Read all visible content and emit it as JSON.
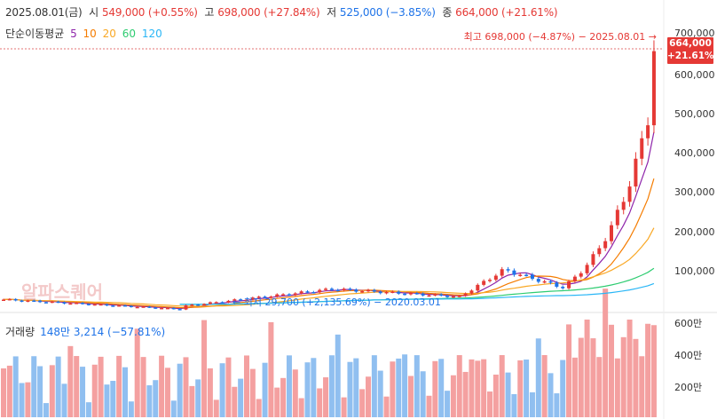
{
  "ohlc": {
    "date": "2025.08.01(금)",
    "open_label": "시",
    "open": "549,000 (+0.55%)",
    "high_label": "고",
    "high": "698,000 (+27.84%)",
    "low_label": "저",
    "low": "525,000 (−3.85%)",
    "close_label": "종",
    "close": "664,000 (+21.61%)"
  },
  "moving_average": {
    "label": "단순이동평균",
    "periods": [
      {
        "value": "5",
        "color": "#8e24aa"
      },
      {
        "value": "10",
        "color": "#f57c00"
      },
      {
        "value": "20",
        "color": "#f9a825"
      },
      {
        "value": "60",
        "color": "#2ecc71"
      },
      {
        "value": "120",
        "color": "#29b6f6"
      }
    ]
  },
  "price_axis": [
    "700,000",
    "600,000",
    "500,000",
    "400,000",
    "300,000",
    "200,000",
    "100,000"
  ],
  "current_price": {
    "price": "664,000",
    "change": "+21.61%"
  },
  "high_marker": "최고 698,000 (−4.87%) − 2025.08.01 →",
  "low_marker": "← 최저 29,700 (+2,135.69%) − 2020.03.01",
  "watermark": "알파스퀘어",
  "volume": {
    "label": "거래량",
    "value": "148만 3,214 (−57.81%)",
    "axis": [
      "600만",
      "400만",
      "200만"
    ]
  },
  "colors": {
    "up": "#e53935",
    "down": "#1e73e8",
    "vol_up": "#f4a0a0",
    "vol_down": "#90bff0"
  }
}
